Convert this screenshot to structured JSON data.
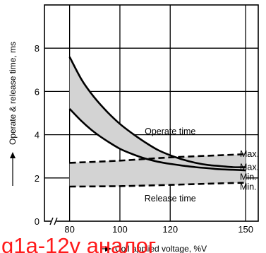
{
  "chart_data": {
    "type": "area",
    "xlabel": "Coil applied voltage, %V",
    "ylabel": "Operate & release time, ms",
    "xlim": [
      70,
      155
    ],
    "ylim": [
      0,
      10
    ],
    "x_ticks": [
      80,
      100,
      120,
      150
    ],
    "y_ticks": [
      0,
      2,
      4,
      6,
      8
    ],
    "grid": true,
    "bands": [
      {
        "label": "Operate time",
        "upper": {
          "name": "Max.",
          "style": "solid",
          "points": [
            [
              80,
              7.6
            ],
            [
              85,
              6.5
            ],
            [
              90,
              5.7
            ],
            [
              95,
              5.05
            ],
            [
              100,
              4.5
            ],
            [
              105,
              4.05
            ],
            [
              110,
              3.65
            ],
            [
              115,
              3.3
            ],
            [
              120,
              3.05
            ],
            [
              125,
              2.85
            ],
            [
              130,
              2.7
            ],
            [
              135,
              2.6
            ],
            [
              140,
              2.55
            ],
            [
              145,
              2.5
            ],
            [
              150,
              2.5
            ]
          ]
        },
        "lower": {
          "name": "Min.",
          "style": "solid",
          "points": [
            [
              80,
              5.2
            ],
            [
              85,
              4.6
            ],
            [
              90,
              4.1
            ],
            [
              95,
              3.7
            ],
            [
              100,
              3.35
            ],
            [
              105,
              3.1
            ],
            [
              110,
              2.9
            ],
            [
              115,
              2.75
            ],
            [
              120,
              2.65
            ],
            [
              125,
              2.57
            ],
            [
              130,
              2.5
            ],
            [
              135,
              2.45
            ],
            [
              140,
              2.4
            ],
            [
              145,
              2.38
            ],
            [
              150,
              2.35
            ]
          ]
        }
      },
      {
        "label": "Release time",
        "upper": {
          "name": "Max.",
          "style": "dashed",
          "points": [
            [
              80,
              2.7
            ],
            [
              100,
              2.8
            ],
            [
              120,
              2.95
            ],
            [
              140,
              3.05
            ],
            [
              150,
              3.1
            ]
          ]
        },
        "lower": {
          "name": "Min.",
          "style": "dashed",
          "points": [
            [
              80,
              1.6
            ],
            [
              100,
              1.62
            ],
            [
              120,
              1.68
            ],
            [
              140,
              1.75
            ],
            [
              150,
              1.78
            ]
          ]
        }
      }
    ],
    "end_labels": [
      "Max.",
      "Max.",
      "Min.",
      "Min."
    ]
  },
  "overlay_text": "g1a-12v аналог"
}
